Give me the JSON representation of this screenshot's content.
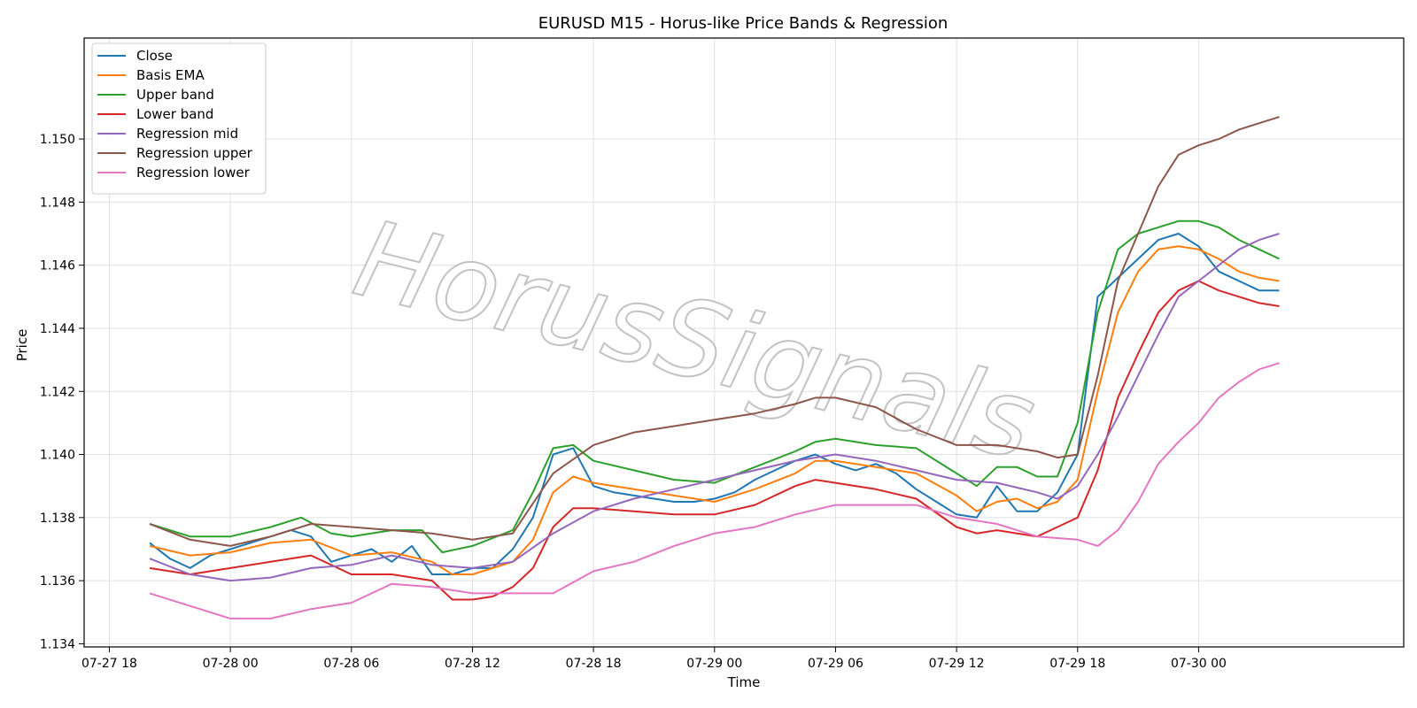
{
  "chart_data": {
    "type": "line",
    "title": "EURUSD M15 - Horus-like Price Bands & Regression",
    "xlabel": "Time",
    "ylabel": "Price",
    "xlim": [
      "2025-07-27T16:45",
      "2025-07-30T10:10"
    ],
    "ylim": [
      1.1339,
      1.1532
    ],
    "x_ticks": [
      "2025-07-27T18:00",
      "2025-07-28T00:00",
      "2025-07-28T06:00",
      "2025-07-28T12:00",
      "2025-07-28T18:00",
      "2025-07-29T00:00",
      "2025-07-29T06:00",
      "2025-07-29T12:00",
      "2025-07-29T18:00",
      "2025-07-30T00:00"
    ],
    "x_tick_labels": [
      "07-27 18",
      "07-28 00",
      "07-28 06",
      "07-28 12",
      "07-28 18",
      "07-29 00",
      "07-29 06",
      "07-29 12",
      "07-29 18",
      "07-30 00"
    ],
    "y_ticks": [
      1.134,
      1.136,
      1.138,
      1.14,
      1.142,
      1.144,
      1.146,
      1.148,
      1.15
    ],
    "y_tick_labels": [
      "1.134",
      "1.136",
      "1.138",
      "1.140",
      "1.142",
      "1.144",
      "1.146",
      "1.148",
      "1.150"
    ],
    "grid": true,
    "legend_position": "top-left",
    "watermark": "HorusSignals",
    "series": [
      {
        "name": "Close",
        "color": "#1f77b4",
        "x": [
          "2025-07-27T20:00",
          "2025-07-27T21:00",
          "2025-07-27T22:00",
          "2025-07-27T23:00",
          "2025-07-28T00:00",
          "2025-07-28T01:00",
          "2025-07-28T02:00",
          "2025-07-28T03:00",
          "2025-07-28T04:00",
          "2025-07-28T05:00",
          "2025-07-28T06:00",
          "2025-07-28T07:00",
          "2025-07-28T08:00",
          "2025-07-28T09:00",
          "2025-07-28T10:00",
          "2025-07-28T11:00",
          "2025-07-28T12:00",
          "2025-07-28T13:00",
          "2025-07-28T14:00",
          "2025-07-28T15:00",
          "2025-07-28T16:00",
          "2025-07-28T17:00",
          "2025-07-28T18:00",
          "2025-07-28T19:00",
          "2025-07-28T20:00",
          "2025-07-28T21:00",
          "2025-07-28T22:00",
          "2025-07-28T23:00",
          "2025-07-29T00:00",
          "2025-07-29T01:00",
          "2025-07-29T02:00",
          "2025-07-29T03:00",
          "2025-07-29T04:00",
          "2025-07-29T05:00",
          "2025-07-29T06:00",
          "2025-07-29T07:00",
          "2025-07-29T08:00",
          "2025-07-29T09:00",
          "2025-07-29T10:00",
          "2025-07-29T11:00",
          "2025-07-29T12:00",
          "2025-07-29T13:00",
          "2025-07-29T14:00",
          "2025-07-29T15:00",
          "2025-07-29T16:00",
          "2025-07-29T17:00",
          "2025-07-29T18:00",
          "2025-07-29T19:00",
          "2025-07-29T20:00",
          "2025-07-29T21:00",
          "2025-07-29T22:00",
          "2025-07-29T23:00",
          "2025-07-30T00:00",
          "2025-07-30T01:00",
          "2025-07-30T02:00",
          "2025-07-30T03:00",
          "2025-07-30T04:00"
        ],
        "y": [
          1.1372,
          1.1367,
          1.1364,
          1.1368,
          1.137,
          1.1372,
          1.1374,
          1.1376,
          1.1374,
          1.1366,
          1.1368,
          1.137,
          1.1366,
          1.1371,
          1.1362,
          1.1362,
          1.1364,
          1.1364,
          1.137,
          1.138,
          1.14,
          1.1402,
          1.139,
          1.1388,
          1.1387,
          1.1386,
          1.1385,
          1.1385,
          1.1386,
          1.1388,
          1.1392,
          1.1395,
          1.1398,
          1.14,
          1.1397,
          1.1395,
          1.1397,
          1.1394,
          1.1389,
          1.1385,
          1.1381,
          1.138,
          1.139,
          1.1382,
          1.1382,
          1.1388,
          1.14,
          1.145,
          1.1456,
          1.1462,
          1.1468,
          1.147,
          1.1466,
          1.1458,
          1.1455,
          1.1452,
          1.1452
        ]
      },
      {
        "name": "Basis EMA",
        "color": "#ff7f0e",
        "x": [
          "2025-07-27T20:00",
          "2025-07-27T22:00",
          "2025-07-28T00:00",
          "2025-07-28T02:00",
          "2025-07-28T04:00",
          "2025-07-28T06:00",
          "2025-07-28T08:00",
          "2025-07-28T10:00",
          "2025-07-28T11:00",
          "2025-07-28T12:00",
          "2025-07-28T14:00",
          "2025-07-28T15:00",
          "2025-07-28T16:00",
          "2025-07-28T17:00",
          "2025-07-28T18:00",
          "2025-07-28T20:00",
          "2025-07-28T22:00",
          "2025-07-29T00:00",
          "2025-07-29T02:00",
          "2025-07-29T04:00",
          "2025-07-29T05:00",
          "2025-07-29T06:00",
          "2025-07-29T08:00",
          "2025-07-29T10:00",
          "2025-07-29T12:00",
          "2025-07-29T13:00",
          "2025-07-29T14:00",
          "2025-07-29T15:00",
          "2025-07-29T16:00",
          "2025-07-29T17:00",
          "2025-07-29T18:00",
          "2025-07-29T19:00",
          "2025-07-29T20:00",
          "2025-07-29T21:00",
          "2025-07-29T22:00",
          "2025-07-29T23:00",
          "2025-07-30T00:00",
          "2025-07-30T01:00",
          "2025-07-30T02:00",
          "2025-07-30T03:00",
          "2025-07-30T04:00"
        ],
        "y": [
          1.1371,
          1.1368,
          1.1369,
          1.1372,
          1.1373,
          1.1368,
          1.1369,
          1.1366,
          1.1362,
          1.1362,
          1.1366,
          1.1373,
          1.1388,
          1.1393,
          1.1391,
          1.1389,
          1.1387,
          1.1385,
          1.1389,
          1.1394,
          1.1398,
          1.1398,
          1.1396,
          1.1394,
          1.1387,
          1.1382,
          1.1385,
          1.1386,
          1.1383,
          1.1385,
          1.1392,
          1.142,
          1.1445,
          1.1458,
          1.1465,
          1.1466,
          1.1465,
          1.1462,
          1.1458,
          1.1456,
          1.1455
        ]
      },
      {
        "name": "Upper band",
        "color": "#2ca02c",
        "x": [
          "2025-07-27T20:00",
          "2025-07-27T22:00",
          "2025-07-28T00:00",
          "2025-07-28T02:00",
          "2025-07-28T03:30",
          "2025-07-28T05:00",
          "2025-07-28T06:00",
          "2025-07-28T08:00",
          "2025-07-28T09:30",
          "2025-07-28T10:30",
          "2025-07-28T12:00",
          "2025-07-28T14:00",
          "2025-07-28T15:00",
          "2025-07-28T16:00",
          "2025-07-28T17:00",
          "2025-07-28T18:00",
          "2025-07-28T20:00",
          "2025-07-28T22:00",
          "2025-07-29T00:00",
          "2025-07-29T02:00",
          "2025-07-29T04:00",
          "2025-07-29T05:00",
          "2025-07-29T06:00",
          "2025-07-29T08:00",
          "2025-07-29T10:00",
          "2025-07-29T12:00",
          "2025-07-29T13:00",
          "2025-07-29T14:00",
          "2025-07-29T15:00",
          "2025-07-29T16:00",
          "2025-07-29T17:00",
          "2025-07-29T18:00",
          "2025-07-29T19:00",
          "2025-07-29T20:00",
          "2025-07-29T21:00",
          "2025-07-29T22:00",
          "2025-07-29T23:00",
          "2025-07-30T00:00",
          "2025-07-30T01:00",
          "2025-07-30T02:00",
          "2025-07-30T03:00",
          "2025-07-30T04:00"
        ],
        "y": [
          1.1378,
          1.1374,
          1.1374,
          1.1377,
          1.138,
          1.1375,
          1.1374,
          1.1376,
          1.1376,
          1.1369,
          1.1371,
          1.1376,
          1.1388,
          1.1402,
          1.1403,
          1.1398,
          1.1395,
          1.1392,
          1.1391,
          1.1396,
          1.1401,
          1.1404,
          1.1405,
          1.1403,
          1.1402,
          1.1394,
          1.139,
          1.1396,
          1.1396,
          1.1393,
          1.1393,
          1.141,
          1.1445,
          1.1465,
          1.147,
          1.1472,
          1.1474,
          1.1474,
          1.1472,
          1.1468,
          1.1465,
          1.1462
        ]
      },
      {
        "name": "Lower band",
        "color": "#d62728",
        "x": [
          "2025-07-27T20:00",
          "2025-07-27T22:00",
          "2025-07-28T00:00",
          "2025-07-28T02:00",
          "2025-07-28T04:00",
          "2025-07-28T06:00",
          "2025-07-28T08:00",
          "2025-07-28T10:00",
          "2025-07-28T11:00",
          "2025-07-28T12:00",
          "2025-07-28T13:00",
          "2025-07-28T14:00",
          "2025-07-28T15:00",
          "2025-07-28T16:00",
          "2025-07-28T17:00",
          "2025-07-28T18:00",
          "2025-07-28T20:00",
          "2025-07-28T22:00",
          "2025-07-29T00:00",
          "2025-07-29T02:00",
          "2025-07-29T04:00",
          "2025-07-29T05:00",
          "2025-07-29T06:00",
          "2025-07-29T08:00",
          "2025-07-29T10:00",
          "2025-07-29T12:00",
          "2025-07-29T13:00",
          "2025-07-29T14:00",
          "2025-07-29T15:00",
          "2025-07-29T16:00",
          "2025-07-29T17:00",
          "2025-07-29T18:00",
          "2025-07-29T19:00",
          "2025-07-29T20:00",
          "2025-07-29T21:00",
          "2025-07-29T22:00",
          "2025-07-29T23:00",
          "2025-07-30T00:00",
          "2025-07-30T01:00",
          "2025-07-30T02:00",
          "2025-07-30T03:00",
          "2025-07-30T04:00"
        ],
        "y": [
          1.1364,
          1.1362,
          1.1364,
          1.1366,
          1.1368,
          1.1362,
          1.1362,
          1.136,
          1.1354,
          1.1354,
          1.1355,
          1.1358,
          1.1364,
          1.1377,
          1.1383,
          1.1383,
          1.1382,
          1.1381,
          1.1381,
          1.1384,
          1.139,
          1.1392,
          1.1391,
          1.1389,
          1.1386,
          1.1377,
          1.1375,
          1.1376,
          1.1375,
          1.1374,
          1.1377,
          1.138,
          1.1395,
          1.1418,
          1.1432,
          1.1445,
          1.1452,
          1.1455,
          1.1452,
          1.145,
          1.1448,
          1.1447
        ]
      },
      {
        "name": "Regression mid",
        "color": "#9467bd",
        "x": [
          "2025-07-27T20:00",
          "2025-07-27T22:00",
          "2025-07-28T00:00",
          "2025-07-28T02:00",
          "2025-07-28T04:00",
          "2025-07-28T06:00",
          "2025-07-28T08:00",
          "2025-07-28T10:00",
          "2025-07-28T12:00",
          "2025-07-28T14:00",
          "2025-07-28T16:00",
          "2025-07-28T18:00",
          "2025-07-28T20:00",
          "2025-07-28T22:00",
          "2025-07-29T00:00",
          "2025-07-29T02:00",
          "2025-07-29T04:00",
          "2025-07-29T06:00",
          "2025-07-29T08:00",
          "2025-07-29T10:00",
          "2025-07-29T12:00",
          "2025-07-29T14:00",
          "2025-07-29T16:00",
          "2025-07-29T17:00",
          "2025-07-29T18:00",
          "2025-07-29T19:00",
          "2025-07-29T20:00",
          "2025-07-29T21:00",
          "2025-07-29T22:00",
          "2025-07-29T23:00",
          "2025-07-30T00:00",
          "2025-07-30T01:00",
          "2025-07-30T02:00",
          "2025-07-30T03:00",
          "2025-07-30T04:00"
        ],
        "y": [
          1.1367,
          1.1362,
          1.136,
          1.1361,
          1.1364,
          1.1365,
          1.1368,
          1.1365,
          1.1364,
          1.1366,
          1.1375,
          1.1382,
          1.1386,
          1.1389,
          1.1392,
          1.1395,
          1.1398,
          1.14,
          1.1398,
          1.1395,
          1.1392,
          1.1391,
          1.1388,
          1.1386,
          1.139,
          1.14,
          1.1412,
          1.1425,
          1.1438,
          1.145,
          1.1455,
          1.146,
          1.1465,
          1.1468,
          1.147
        ]
      },
      {
        "name": "Regression upper",
        "color": "#8c564b",
        "x": [
          "2025-07-27T20:00",
          "2025-07-27T22:00",
          "2025-07-28T00:00",
          "2025-07-28T02:00",
          "2025-07-28T04:00",
          "2025-07-28T06:00",
          "2025-07-28T08:00",
          "2025-07-28T10:00",
          "2025-07-28T12:00",
          "2025-07-28T14:00",
          "2025-07-28T16:00",
          "2025-07-28T18:00",
          "2025-07-28T20:00",
          "2025-07-28T22:00",
          "2025-07-29T00:00",
          "2025-07-29T02:00",
          "2025-07-29T04:00",
          "2025-07-29T05:00",
          "2025-07-29T06:00",
          "2025-07-29T08:00",
          "2025-07-29T10:00",
          "2025-07-29T12:00",
          "2025-07-29T14:00",
          "2025-07-29T16:00",
          "2025-07-29T17:00",
          "2025-07-29T18:00",
          "2025-07-29T19:00",
          "2025-07-29T20:00",
          "2025-07-29T21:00",
          "2025-07-29T22:00",
          "2025-07-29T23:00",
          "2025-07-30T00:00",
          "2025-07-30T01:00",
          "2025-07-30T02:00",
          "2025-07-30T03:00",
          "2025-07-30T04:00"
        ],
        "y": [
          1.1378,
          1.1373,
          1.1371,
          1.1374,
          1.1378,
          1.1377,
          1.1376,
          1.1375,
          1.1373,
          1.1375,
          1.1394,
          1.1403,
          1.1407,
          1.1409,
          1.1411,
          1.1413,
          1.1416,
          1.1418,
          1.1418,
          1.1415,
          1.1408,
          1.1403,
          1.1403,
          1.1401,
          1.1399,
          1.14,
          1.1425,
          1.1455,
          1.147,
          1.1485,
          1.1495,
          1.1498,
          1.15,
          1.1503,
          1.1505,
          1.1507
        ]
      },
      {
        "name": "Regression lower",
        "color": "#e377c2",
        "x": [
          "2025-07-27T20:00",
          "2025-07-27T22:00",
          "2025-07-28T00:00",
          "2025-07-28T02:00",
          "2025-07-28T04:00",
          "2025-07-28T06:00",
          "2025-07-28T08:00",
          "2025-07-28T10:00",
          "2025-07-28T12:00",
          "2025-07-28T14:00",
          "2025-07-28T16:00",
          "2025-07-28T18:00",
          "2025-07-28T20:00",
          "2025-07-28T22:00",
          "2025-07-29T00:00",
          "2025-07-29T02:00",
          "2025-07-29T04:00",
          "2025-07-29T06:00",
          "2025-07-29T08:00",
          "2025-07-29T10:00",
          "2025-07-29T12:00",
          "2025-07-29T14:00",
          "2025-07-29T16:00",
          "2025-07-29T18:00",
          "2025-07-29T19:00",
          "2025-07-29T20:00",
          "2025-07-29T21:00",
          "2025-07-29T22:00",
          "2025-07-29T23:00",
          "2025-07-30T00:00",
          "2025-07-30T01:00",
          "2025-07-30T02:00",
          "2025-07-30T03:00",
          "2025-07-30T04:00"
        ],
        "y": [
          1.1356,
          1.1352,
          1.1348,
          1.1348,
          1.1351,
          1.1353,
          1.1359,
          1.1358,
          1.1356,
          1.1356,
          1.1356,
          1.1363,
          1.1366,
          1.1371,
          1.1375,
          1.1377,
          1.1381,
          1.1384,
          1.1384,
          1.1384,
          1.138,
          1.1378,
          1.1374,
          1.1373,
          1.1371,
          1.1376,
          1.1385,
          1.1397,
          1.1404,
          1.141,
          1.1418,
          1.1423,
          1.1427,
          1.1429
        ]
      }
    ]
  }
}
